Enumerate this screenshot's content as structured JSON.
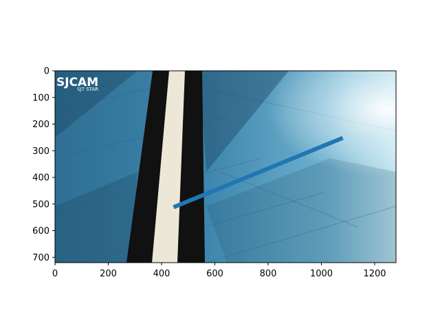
{
  "chart_data": {
    "type": "line",
    "title": "",
    "xlabel": "",
    "ylabel": "",
    "xlim": [
      0,
      1280
    ],
    "ylim": [
      720,
      0
    ],
    "y_inverted": true,
    "grid": false,
    "background": "camera photo of a blue wood-pattern floor with a black and cream tape track",
    "series": [
      {
        "x": [
          445,
          1080
        ],
        "y": [
          512,
          252
        ],
        "color": "#1f77b4"
      }
    ],
    "xticks": [
      0,
      200,
      400,
      600,
      800,
      1000,
      1200
    ],
    "yticks": [
      0,
      100,
      200,
      300,
      400,
      500,
      600,
      700
    ],
    "xtick_labels": [
      "0",
      "200",
      "400",
      "600",
      "800",
      "1000",
      "1200"
    ],
    "ytick_labels": [
      "0",
      "100",
      "200",
      "300",
      "400",
      "500",
      "600",
      "700"
    ]
  },
  "logo": {
    "main": "SJCAM",
    "sub": "SJ7 STAR"
  }
}
